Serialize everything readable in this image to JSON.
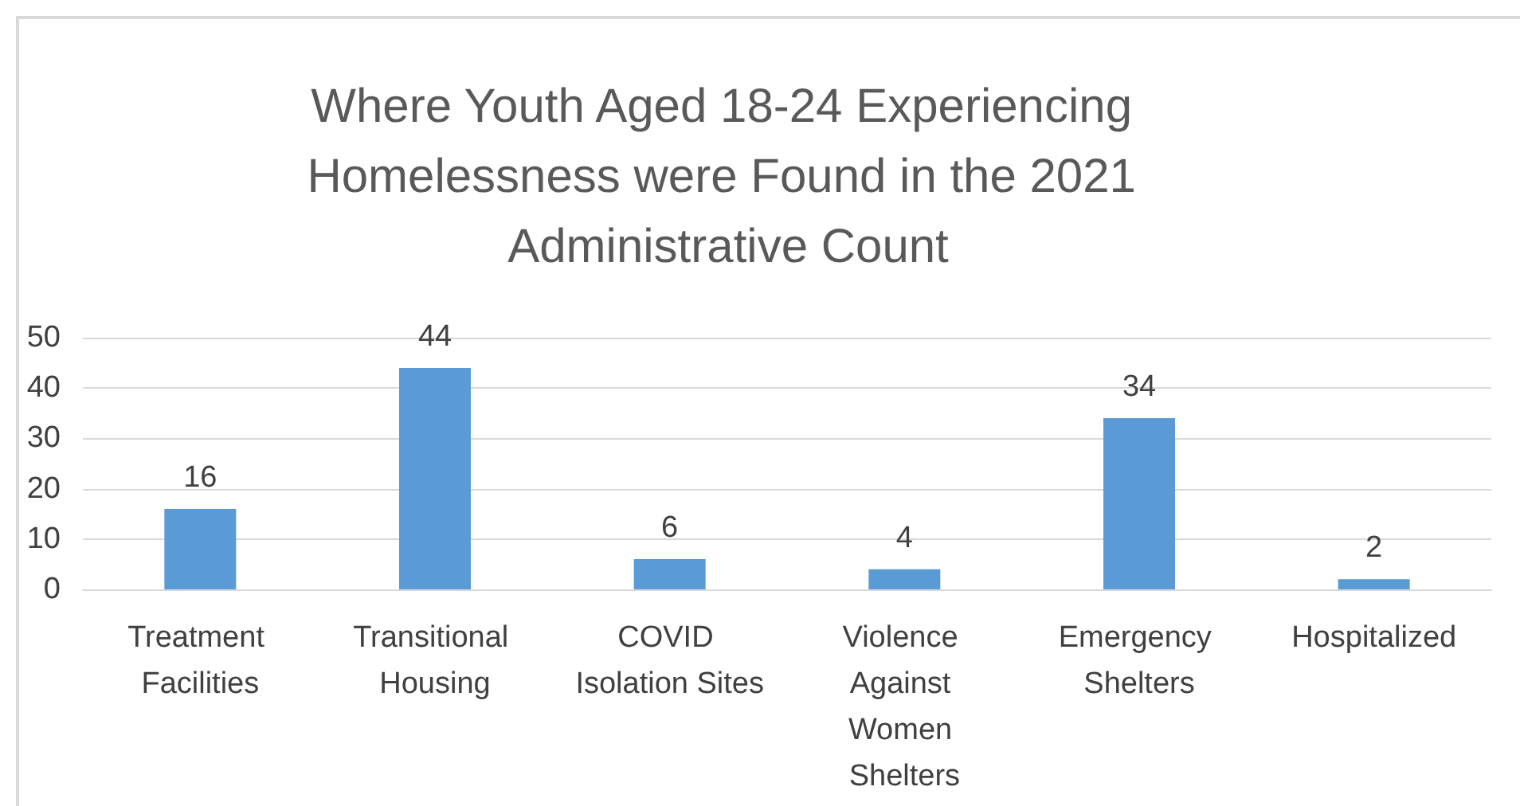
{
  "chart_data": {
    "type": "bar",
    "title": "Where Youth Aged 18-24 Experiencing Homelessness were Found in the 2021 Administrative Count",
    "categories": [
      "Treatment Facilities",
      "Transitional Housing",
      "COVID Isolation Sites",
      "Violence Against Women Shelters",
      "Emergency Shelters",
      "Hospitalized"
    ],
    "values": [
      16,
      44,
      6,
      4,
      34,
      2
    ],
    "color": "#5b9bd5",
    "ylim": [
      0,
      50
    ],
    "yticks": [
      0,
      10,
      20,
      30,
      40,
      50
    ],
    "grid": "y",
    "data_labels": true
  }
}
